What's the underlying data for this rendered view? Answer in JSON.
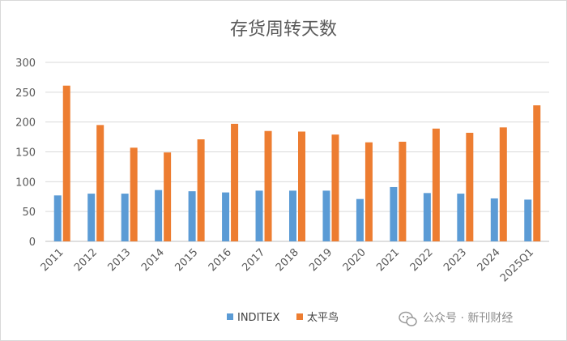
{
  "chart_data": {
    "type": "bar",
    "title": "存货周转天数",
    "categories": [
      "2011",
      "2012",
      "2013",
      "2014",
      "2015",
      "2016",
      "2017",
      "2018",
      "2019",
      "2020",
      "2021",
      "2022",
      "2023",
      "2024",
      "2025Q1"
    ],
    "series": [
      {
        "name": "INDITEX",
        "color": "#5b9bd5",
        "values": [
          77,
          80,
          80,
          86,
          84,
          82,
          85,
          85,
          85,
          71,
          91,
          81,
          80,
          72,
          70
        ]
      },
      {
        "name": "太平鸟",
        "color": "#ed7d31",
        "values": [
          261,
          195,
          157,
          149,
          171,
          197,
          185,
          184,
          179,
          166,
          167,
          189,
          182,
          191,
          228
        ]
      }
    ],
    "ylim": [
      0,
      300
    ],
    "yticks": [
      0,
      50,
      100,
      150,
      200,
      250,
      300
    ],
    "grid": true,
    "legend_position": "bottom"
  },
  "watermark": {
    "icon": "wechat-icon",
    "text": "公众号 · 新刊财经"
  }
}
